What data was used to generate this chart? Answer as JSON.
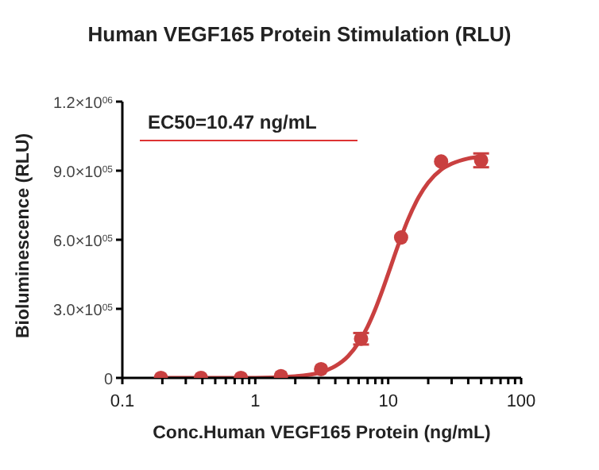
{
  "chart_data": {
    "type": "scatter",
    "title": "Human VEGF165 Protein Stimulation (RLU)",
    "xlabel": "Conc.Human VEGF165 Protein (ng/mL)",
    "ylabel": "Bioluminescence (RLU)",
    "annotations": [
      "EC50=10.47 ng/mL"
    ],
    "log": "x",
    "xlim": [
      0.1,
      100
    ],
    "xticks": [
      0.1,
      {
        "value": 0.2,
        "label": null
      },
      {
        "value": 0.3,
        "label": null
      },
      {
        "value": 0.4,
        "label": null
      },
      {
        "value": 0.5,
        "label": null
      },
      {
        "value": 0.6,
        "label": null
      },
      {
        "value": 0.7,
        "label": null
      },
      {
        "value": 0.8,
        "label": null
      },
      {
        "value": 0.9,
        "label": null
      },
      1,
      {
        "value": 2,
        "label": null
      },
      {
        "value": 3,
        "label": null
      },
      {
        "value": 4,
        "label": null
      },
      {
        "value": 5,
        "label": null
      },
      {
        "value": 6,
        "label": null
      },
      {
        "value": 7,
        "label": null
      },
      {
        "value": 8,
        "label": null
      },
      {
        "value": 9,
        "label": null
      },
      10,
      {
        "value": 20,
        "label": null
      },
      {
        "value": 30,
        "label": null
      },
      {
        "value": 40,
        "label": null
      },
      {
        "value": 50,
        "label": null
      },
      {
        "value": 60,
        "label": null
      },
      {
        "value": 70,
        "label": null
      },
      {
        "value": 80,
        "label": null
      },
      {
        "value": 90,
        "label": null
      },
      100
    ],
    "ylim": [
      0,
      1200000
    ],
    "yticks": [
      0,
      {
        "value": 300000,
        "label": "3.0×10$^{05}$"
      },
      {
        "value": 600000,
        "label": "6.0×10$^{05}$"
      },
      {
        "value": 900000,
        "label": "9.0×10$^{05}$"
      },
      {
        "value": 1200000,
        "label": "1.2×10$^{06}$"
      }
    ],
    "marker": "circle",
    "series": [
      {
        "color": "#c94040",
        "x": [
          0.195,
          0.39,
          0.78,
          1.56,
          3.125,
          6.25,
          12.5,
          25,
          50
        ],
        "values": [
          0,
          0,
          0,
          8000,
          38000,
          170000,
          610000,
          940000,
          945000
        ],
        "errors": [
          null,
          null,
          null,
          null,
          null,
          25000,
          null,
          null,
          30000
        ]
      },
      {
        "type": "line",
        "color": "#c94040",
        "marker": "none",
        "line_style": "solid",
        "x": [
          0.2,
          1,
          2,
          3,
          4,
          5,
          6,
          7,
          8,
          9,
          10,
          12,
          14,
          17,
          20,
          25,
          30,
          40,
          50
        ],
        "values": [
          0,
          0,
          7000,
          22000,
          51000,
          95000,
          154000,
          223000,
          299000,
          377000,
          452000,
          583000,
          684000,
          786000,
          848000,
          904000,
          930000,
          953000,
          961000
        ]
      }
    ]
  }
}
